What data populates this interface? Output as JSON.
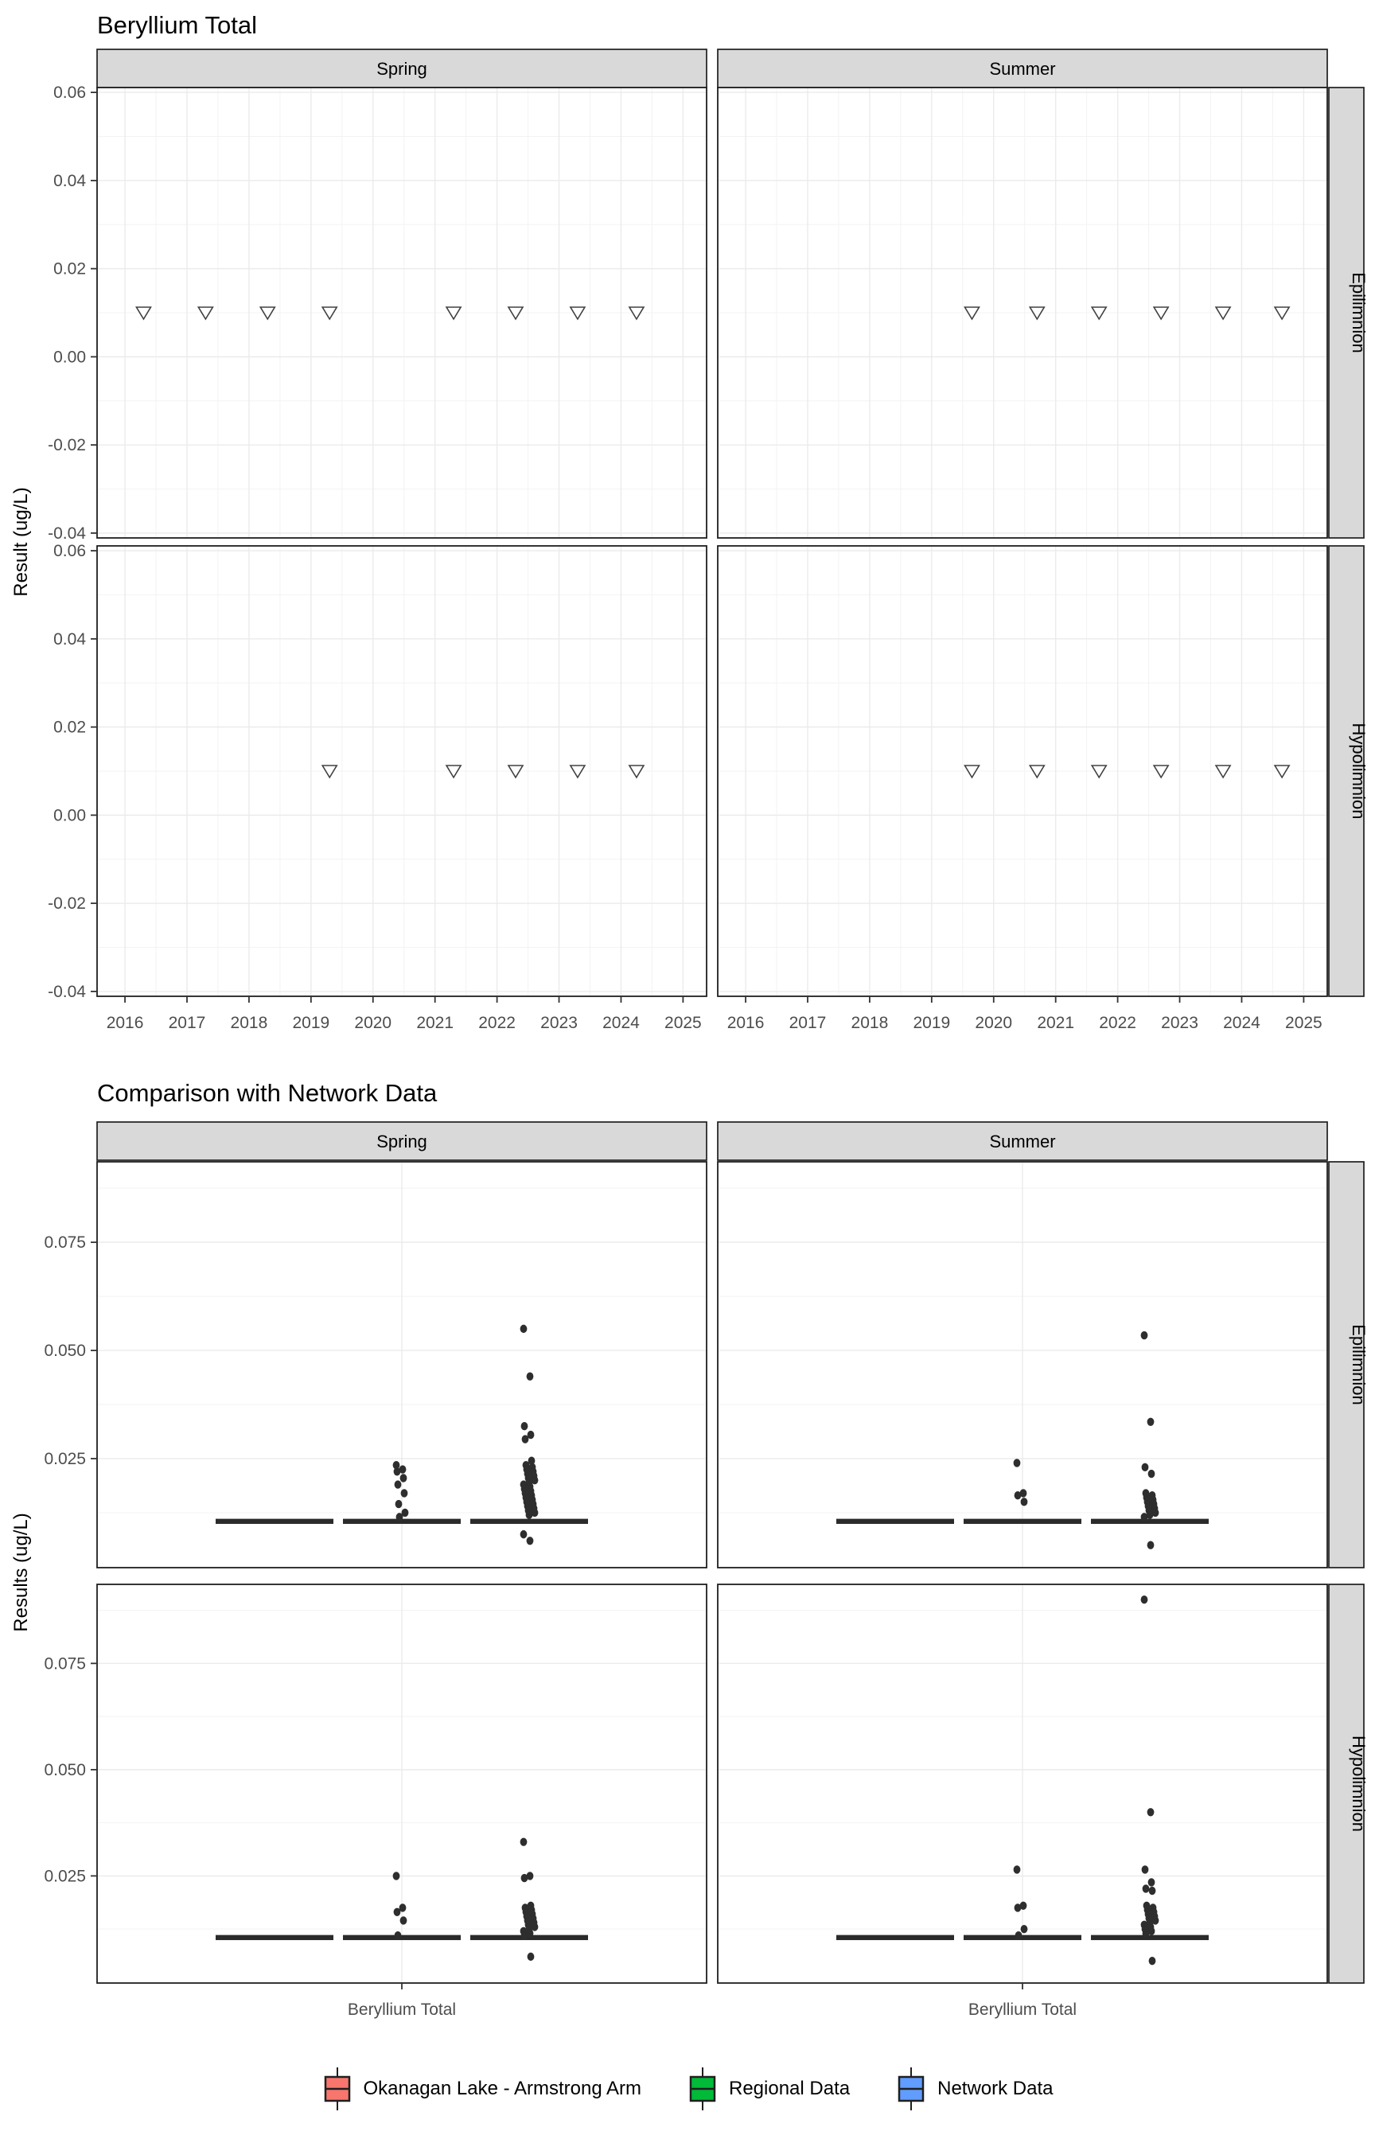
{
  "figure": {
    "background": "#ffffff",
    "text_color": "#000000",
    "tick_label_color": "#4d4d4d",
    "strip_fill": "#d9d9d9",
    "grid_major_color": "#ebebeb",
    "grid_minor_color": "#f3f3f3",
    "border_color": "#1f1f1f",
    "point_color": "#2e2e2e"
  },
  "chart_data": [
    {
      "type": "scatter",
      "title": "Beryllium Total",
      "ylabel": "Result (ug/L)",
      "col_facets": [
        "Spring",
        "Summer"
      ],
      "row_facets": [
        "Epilimnion",
        "Hypolimnion"
      ],
      "marker": "open-triangle-down",
      "marker_meaning": "non-detect result at detection limit",
      "x_ticks": [
        2016,
        2017,
        2018,
        2019,
        2020,
        2021,
        2022,
        2023,
        2024,
        2025
      ],
      "y_ticks": [
        {
          "v": 0.06,
          "t": "0.06"
        },
        {
          "v": 0.04,
          "t": "0.04"
        },
        {
          "v": 0.02,
          "t": "0.02"
        },
        {
          "v": 0.0,
          "t": "0.00"
        },
        {
          "v": -0.02,
          "t": "-0.02"
        },
        {
          "v": -0.04,
          "t": "-0.04"
        }
      ],
      "xlim": [
        2015.55,
        2025.38
      ],
      "ylim": [
        -0.0411,
        0.0611
      ],
      "grid": true,
      "facets": [
        {
          "col": 0,
          "row": 0,
          "points": [
            {
              "x": 2016.3,
              "y": 0.01
            },
            {
              "x": 2017.3,
              "y": 0.01
            },
            {
              "x": 2018.3,
              "y": 0.01
            },
            {
              "x": 2019.3,
              "y": 0.01
            },
            {
              "x": 2021.3,
              "y": 0.01
            },
            {
              "x": 2022.3,
              "y": 0.01
            },
            {
              "x": 2023.3,
              "y": 0.01
            },
            {
              "x": 2024.25,
              "y": 0.01
            }
          ]
        },
        {
          "col": 1,
          "row": 0,
          "points": [
            {
              "x": 2019.65,
              "y": 0.01
            },
            {
              "x": 2020.7,
              "y": 0.01
            },
            {
              "x": 2021.7,
              "y": 0.01
            },
            {
              "x": 2022.7,
              "y": 0.01
            },
            {
              "x": 2023.7,
              "y": 0.01
            },
            {
              "x": 2024.65,
              "y": 0.01
            }
          ]
        },
        {
          "col": 0,
          "row": 1,
          "points": [
            {
              "x": 2019.3,
              "y": 0.01
            },
            {
              "x": 2021.3,
              "y": 0.01
            },
            {
              "x": 2022.3,
              "y": 0.01
            },
            {
              "x": 2023.3,
              "y": 0.01
            },
            {
              "x": 2024.25,
              "y": 0.01
            }
          ]
        },
        {
          "col": 1,
          "row": 1,
          "points": [
            {
              "x": 2019.65,
              "y": 0.01
            },
            {
              "x": 2020.7,
              "y": 0.01
            },
            {
              "x": 2021.7,
              "y": 0.01
            },
            {
              "x": 2022.7,
              "y": 0.01
            },
            {
              "x": 2023.7,
              "y": 0.01
            },
            {
              "x": 2024.65,
              "y": 0.01
            }
          ]
        }
      ]
    },
    {
      "type": "box-jitter",
      "title": "Comparison with Network Data",
      "ylabel": "Results (ug/L)",
      "x_category": "Beryllium Total",
      "col_facets": [
        "Spring",
        "Summer"
      ],
      "row_facets": [
        "Epilimnion",
        "Hypolimnion"
      ],
      "groups": [
        "Okanagan Lake - Armstrong Arm",
        "Regional Data",
        "Network Data"
      ],
      "group_colors": [
        "#F8766D",
        "#00BA38",
        "#619CFF"
      ],
      "y_ticks": [
        {
          "v": 0.075,
          "t": "0.075"
        },
        {
          "v": 0.05,
          "t": "0.050"
        },
        {
          "v": 0.025,
          "t": "0.025"
        }
      ],
      "ylim": [
        -0.0002,
        0.0936
      ],
      "box_value": 0.0105,
      "facets": [
        {
          "col": 0,
          "row": 0,
          "group_points": [
            [],
            [
              0.0235,
              0.0225,
              0.022,
              0.0205,
              0.019,
              0.017,
              0.0145,
              0.0125,
              0.0115
            ],
            [
              0.055,
              0.044,
              0.0325,
              0.0305,
              0.0295,
              0.0245,
              0.0235,
              0.023,
              0.0225,
              0.022,
              0.0215,
              0.021,
              0.0205,
              0.02,
              0.0195,
              0.019,
              0.0185,
              0.018,
              0.0175,
              0.017,
              0.0165,
              0.016,
              0.0155,
              0.015,
              0.0145,
              0.014,
              0.0135,
              0.013,
              0.0125,
              0.012,
              0.0075,
              0.006
            ]
          ]
        },
        {
          "col": 1,
          "row": 0,
          "group_points": [
            [],
            [
              0.024,
              0.017,
              0.0165,
              0.015
            ],
            [
              0.0535,
              0.0335,
              0.023,
              0.0215,
              0.017,
              0.0165,
              0.016,
              0.0155,
              0.015,
              0.0145,
              0.014,
              0.0135,
              0.013,
              0.0125,
              0.012,
              0.0115,
              0.005
            ]
          ]
        },
        {
          "col": 0,
          "row": 1,
          "group_points": [
            [],
            [
              0.025,
              0.0175,
              0.0165,
              0.0145,
              0.011
            ],
            [
              0.033,
              0.025,
              0.0245,
              0.018,
              0.0175,
              0.017,
              0.0165,
              0.016,
              0.0155,
              0.015,
              0.0145,
              0.014,
              0.0135,
              0.013,
              0.0125,
              0.012,
              0.0115,
              0.011,
              0.006
            ]
          ]
        },
        {
          "col": 1,
          "row": 1,
          "group_points": [
            [],
            [
              0.0265,
              0.018,
              0.0175,
              0.0125,
              0.011
            ],
            [
              0.09,
              0.04,
              0.0265,
              0.0235,
              0.022,
              0.0215,
              0.018,
              0.0175,
              0.017,
              0.0165,
              0.016,
              0.0155,
              0.015,
              0.0145,
              0.014,
              0.0135,
              0.013,
              0.0125,
              0.012,
              0.0115,
              0.005
            ]
          ]
        }
      ]
    }
  ],
  "legend": {
    "items": [
      {
        "label": "Okanagan Lake - Armstrong Arm",
        "color": "#F8766D"
      },
      {
        "label": "Regional Data",
        "color": "#00BA38"
      },
      {
        "label": "Network Data",
        "color": "#619CFF"
      }
    ]
  }
}
